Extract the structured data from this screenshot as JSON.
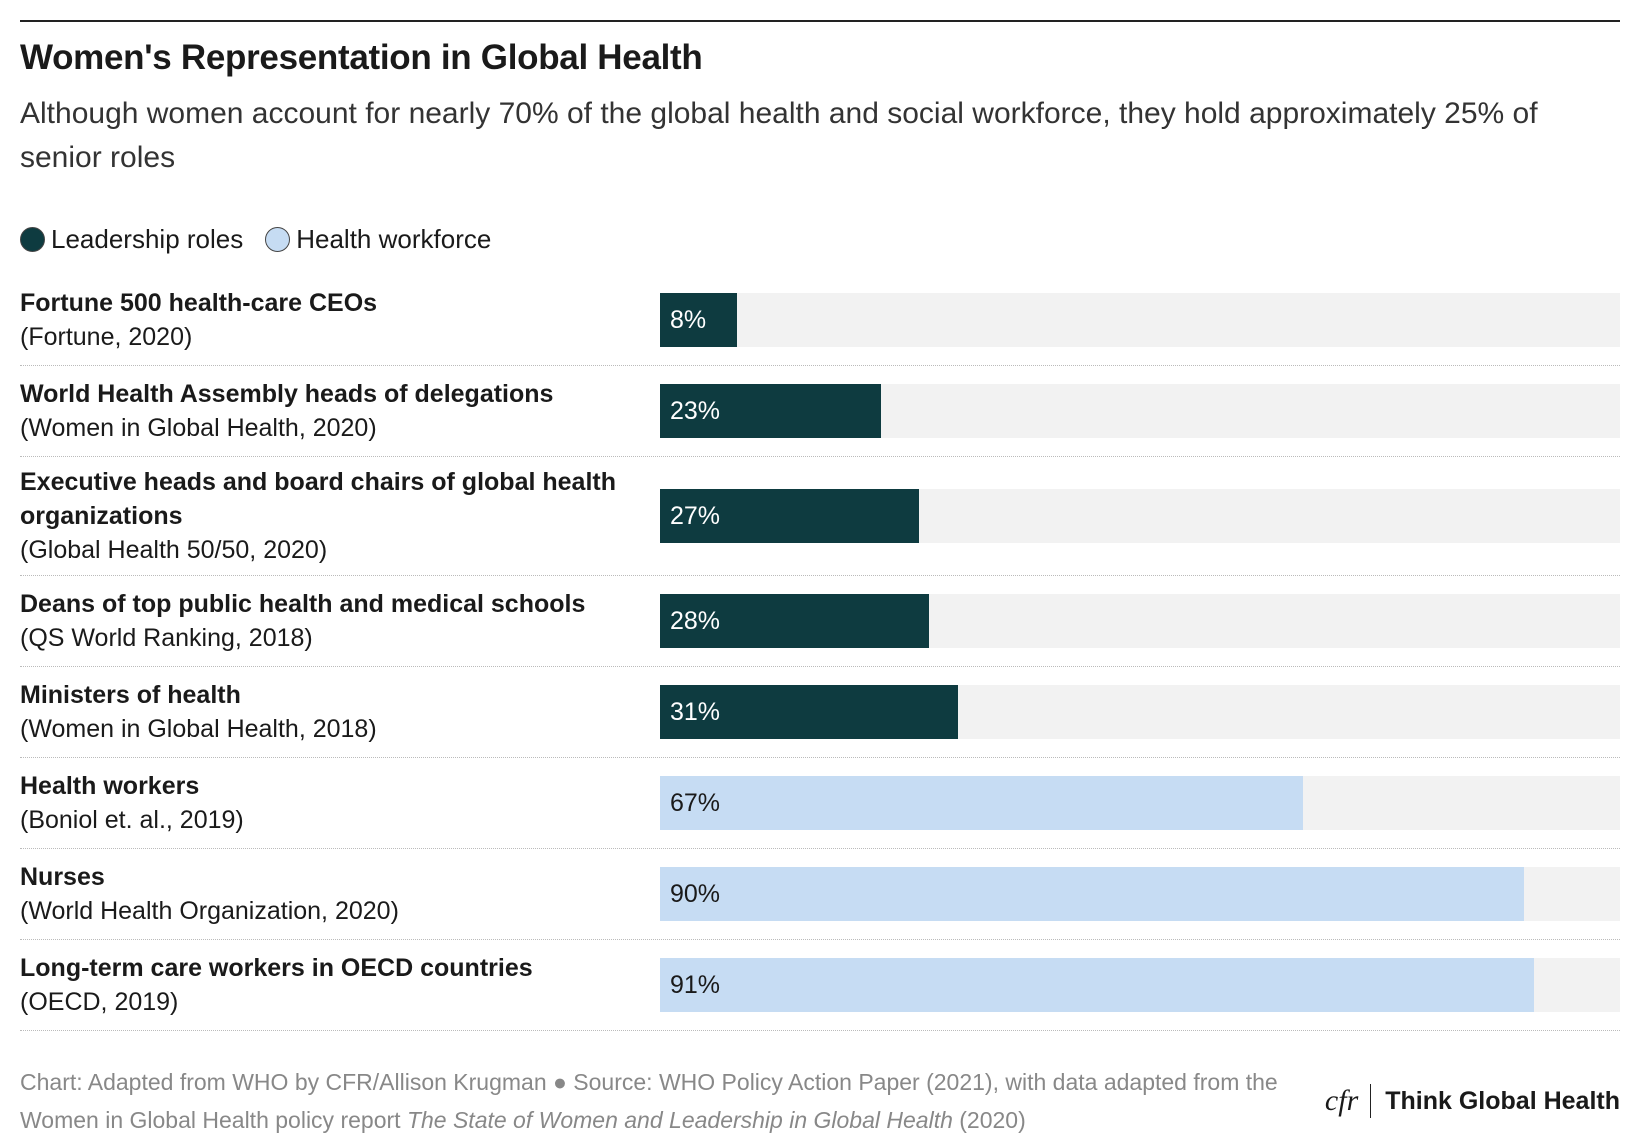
{
  "chart_data": {
    "type": "bar",
    "title": "Women's Representation in Global Health",
    "subtitle": "Although women account for nearly 70% of the global health and social workforce, they hold approximately 25% of senior roles",
    "categories": [
      "Fortune 500 health-care CEOs",
      "World Health Assembly heads of delegations",
      "Executive heads and board chairs of global health organizations",
      "Deans of top public health and medical schools",
      "Ministers of health",
      "Health workers",
      "Nurses",
      "Long-term care workers in OECD countries"
    ],
    "sources": [
      "(Fortune, 2020)",
      "(Women in Global Health, 2020)",
      "(Global Health 50/50, 2020)",
      "(QS World Ranking, 2018)",
      "(Women in Global Health, 2018)",
      "(Boniol et. al., 2019)",
      "(World Health Organization, 2020)",
      "(OECD, 2019)"
    ],
    "series": [
      {
        "name": "Leadership roles",
        "color": "#0e3b40",
        "values": [
          8,
          23,
          27,
          28,
          31,
          null,
          null,
          null
        ],
        "value_labels": [
          "8%",
          "23%",
          "27%",
          "28%",
          "31%",
          null,
          null,
          null
        ]
      },
      {
        "name": "Health workforce",
        "color": "#c6dcf3",
        "values": [
          null,
          null,
          null,
          null,
          null,
          67,
          90,
          91
        ],
        "value_labels": [
          null,
          null,
          null,
          null,
          null,
          "67%",
          "90%",
          "91%"
        ]
      }
    ],
    "xlim": [
      0,
      100
    ],
    "track_color": "#f2f2f2",
    "footer": {
      "credit": "Chart: Adapted from WHO by CFR/Allison Krugman ● Source: WHO Policy Action Paper (2021), with data adapted from the Women in Global Health policy report ",
      "report_title": "The State of Women and Leadership in Global Health",
      "report_year": " (2020)"
    },
    "logo": {
      "mark": "cfr",
      "name": "Think Global Health"
    }
  }
}
